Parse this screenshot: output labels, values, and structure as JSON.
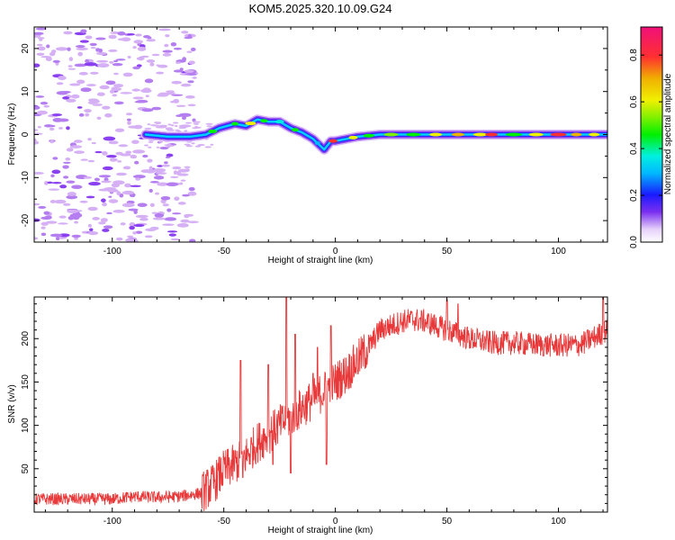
{
  "title": "KOM5.2025.320.10.09.G24",
  "colors": {
    "snr_line": "#e8393a",
    "axis": "#000000",
    "faint_noise": "#d6b0f5",
    "noise": "#b47ef0",
    "strong_noise": "#8a3ff0"
  },
  "chart_data": [
    {
      "type": "heatmap",
      "name": "spectrogram",
      "title": "KOM5.2025.320.10.09.G24",
      "xlabel": "Height of straight line (km)",
      "ylabel": "Frequency (Hz)",
      "xlim": [
        -135,
        122
      ],
      "ylim": [
        -25,
        25
      ],
      "xticks": [
        -100,
        -50,
        0,
        50,
        100
      ],
      "xtick_labels": [
        "-100",
        "-50",
        "0",
        "50",
        "100"
      ],
      "yticks": [
        -20,
        -10,
        0,
        10,
        20
      ],
      "ytick_labels": [
        "-20",
        "-10",
        "0",
        "10",
        "20"
      ],
      "signal_track": {
        "x": [
          -85,
          -75,
          -65,
          -58,
          -52,
          -45,
          -40,
          -35,
          -30,
          -25,
          -20,
          -15,
          -10,
          -7,
          -5,
          -2,
          0,
          5,
          10,
          20,
          40,
          60,
          80,
          100,
          122
        ],
        "freq_hz": [
          0,
          -0.5,
          -0.5,
          0,
          1.5,
          2.5,
          2,
          3.5,
          3,
          3,
          1.5,
          0.5,
          -1,
          -2.5,
          -3.5,
          -1.5,
          -1.5,
          -1,
          -0.5,
          0,
          0,
          0,
          0,
          0,
          0
        ]
      },
      "colorbar": {
        "label": "Normalized spectral amplitude",
        "range": [
          0.0,
          0.92
        ],
        "ticks": [
          0.0,
          0.2,
          0.4,
          0.6,
          0.8
        ],
        "tick_labels": [
          "0.0",
          "0.2",
          "0.4",
          "0.6",
          "0.8"
        ]
      }
    },
    {
      "type": "line",
      "name": "snr",
      "xlabel": "Height of straight line (km)",
      "ylabel": "SNR (v/v)",
      "xlim": [
        -135,
        122
      ],
      "ylim": [
        0,
        248
      ],
      "xticks": [
        -100,
        -50,
        0,
        50,
        100
      ],
      "xtick_labels": [
        "-100",
        "-50",
        "0",
        "50",
        "100"
      ],
      "yticks": [
        50,
        100,
        150,
        200
      ],
      "ytick_labels": [
        "50",
        "100",
        "150",
        "200"
      ],
      "series": [
        {
          "name": "SNR",
          "trend_x": [
            -135,
            -120,
            -100,
            -90,
            -80,
            -70,
            -60,
            -55,
            -50,
            -45,
            -40,
            -35,
            -30,
            -25,
            -20,
            -15,
            -10,
            -5,
            0,
            5,
            10,
            15,
            20,
            25,
            30,
            35,
            40,
            50,
            60,
            70,
            80,
            90,
            100,
            110,
            122
          ],
          "trend_y": [
            15,
            15,
            15,
            18,
            17,
            18,
            22,
            32,
            48,
            55,
            65,
            80,
            90,
            100,
            110,
            120,
            130,
            140,
            150,
            160,
            175,
            190,
            210,
            215,
            220,
            222,
            220,
            210,
            200,
            195,
            195,
            193,
            192,
            193,
            210
          ],
          "spikes": [
            {
              "x": -42.5,
              "y": 175
            },
            {
              "x": -41.5,
              "y": 40
            },
            {
              "x": -30,
              "y": 170
            },
            {
              "x": -28,
              "y": 55
            },
            {
              "x": -22,
              "y": 248
            },
            {
              "x": -20,
              "y": 45
            },
            {
              "x": -18,
              "y": 205
            },
            {
              "x": -10,
              "y": 160
            },
            {
              "x": -8,
              "y": 190
            },
            {
              "x": -4,
              "y": 55
            },
            {
              "x": -2,
              "y": 215
            },
            {
              "x": 50,
              "y": 245
            },
            {
              "x": 55,
              "y": 240
            },
            {
              "x": 120,
              "y": 250
            }
          ]
        }
      ]
    }
  ]
}
